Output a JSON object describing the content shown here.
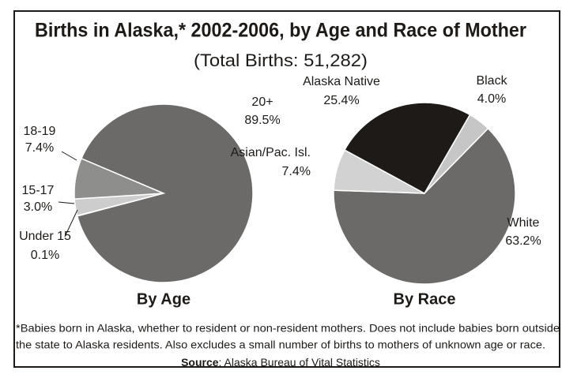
{
  "title": "Births in Alaska,* 2002-2006, by Age and Race of Mother",
  "subtitle": "(Total Births: 51,282)",
  "footnote": [
    "*Babies born in Alaska, whether to resident or non-resident mothers. Does not include babies born outside",
    "the state to Alaska residents. Also excludes a small number of births to mothers of unknown age or race."
  ],
  "source_label": "Source",
  "source_text": ": Alaska Bureau of Vital Statistics",
  "chart_data": [
    {
      "type": "pie",
      "title": "By Age",
      "categories": [
        "Under 15",
        "15-17",
        "18-19",
        "20+"
      ],
      "values": [
        0.1,
        3.0,
        7.4,
        89.5
      ],
      "value_labels": [
        "0.1%",
        "3.0%",
        "7.4%",
        "89.5%"
      ],
      "colors": [
        "#e6e6e6",
        "#cdcdcd",
        "#8e8e8c",
        "#6b6a68"
      ]
    },
    {
      "type": "pie",
      "title": "By Race",
      "categories": [
        "Black",
        "White",
        "Asian/Pac. Isl.",
        "Alaska Native"
      ],
      "values": [
        4.0,
        63.2,
        7.4,
        25.4
      ],
      "value_labels": [
        "4.0%",
        "63.2%",
        "7.4%",
        "25.4%"
      ],
      "colors": [
        "#c6c6c6",
        "#6b6a68",
        "#d2d2d2",
        "#1d1a17"
      ]
    }
  ]
}
